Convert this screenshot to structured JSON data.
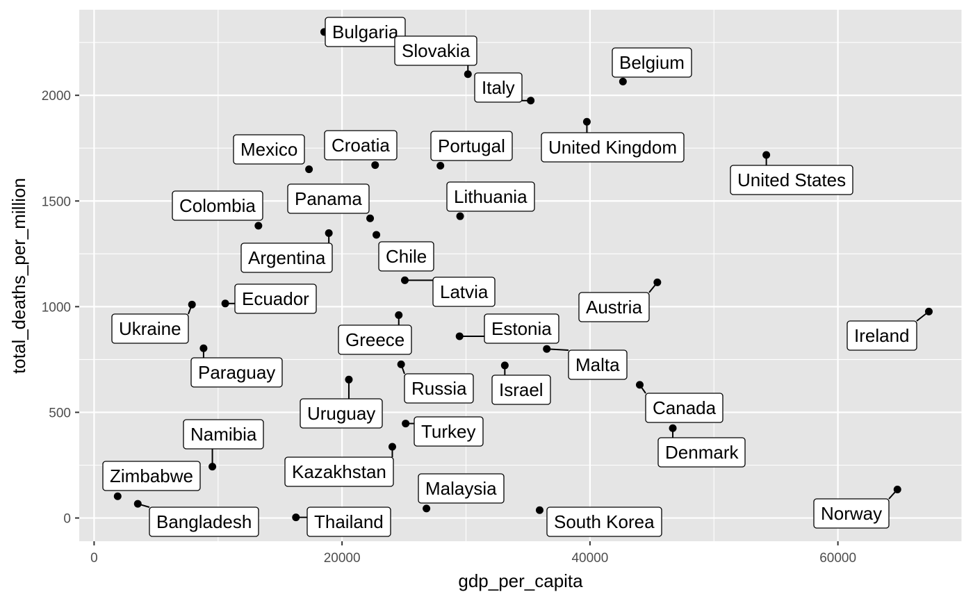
{
  "chart_data": {
    "type": "scatter",
    "xlabel": "gdp_per_capita",
    "ylabel": "total_deaths_per_million",
    "xlim": [
      -1200,
      70000
    ],
    "ylim": [
      -110,
      2405
    ],
    "x_ticks": [
      0,
      20000,
      40000,
      60000
    ],
    "y_ticks": [
      0,
      500,
      1000,
      1500,
      2000
    ],
    "grid": true,
    "background": "#e5e5e5",
    "grid_color": "#ffffff",
    "point_color": "#000000",
    "points": [
      {
        "label": "Bulgaria",
        "x": 18560,
        "y": 2300
      },
      {
        "label": "Slovakia",
        "x": 30155,
        "y": 2100
      },
      {
        "label": "Italy",
        "x": 35220,
        "y": 1975
      },
      {
        "label": "Belgium",
        "x": 42660,
        "y": 2065
      },
      {
        "label": "United Kingdom",
        "x": 39750,
        "y": 1875
      },
      {
        "label": "United States",
        "x": 54225,
        "y": 1718
      },
      {
        "label": "Mexico",
        "x": 17335,
        "y": 1650
      },
      {
        "label": "Croatia",
        "x": 22670,
        "y": 1670
      },
      {
        "label": "Portugal",
        "x": 27935,
        "y": 1667
      },
      {
        "label": "Panama",
        "x": 22265,
        "y": 1418
      },
      {
        "label": "Lithuania",
        "x": 29525,
        "y": 1428
      },
      {
        "label": "Colombia",
        "x": 13255,
        "y": 1383
      },
      {
        "label": "Argentina",
        "x": 18935,
        "y": 1348
      },
      {
        "label": "Chile",
        "x": 22770,
        "y": 1340
      },
      {
        "label": "Latvia",
        "x": 25065,
        "y": 1125
      },
      {
        "label": "Ecuador",
        "x": 10580,
        "y": 1015
      },
      {
        "label": "Ukraine",
        "x": 7895,
        "y": 1010
      },
      {
        "label": "Austria",
        "x": 45435,
        "y": 1115
      },
      {
        "label": "Ireland",
        "x": 67335,
        "y": 977
      },
      {
        "label": "Greece",
        "x": 24575,
        "y": 960
      },
      {
        "label": "Estonia",
        "x": 29480,
        "y": 860
      },
      {
        "label": "Paraguay",
        "x": 8830,
        "y": 803
      },
      {
        "label": "Malta",
        "x": 36515,
        "y": 800
      },
      {
        "label": "Russia",
        "x": 24765,
        "y": 727
      },
      {
        "label": "Israel",
        "x": 33130,
        "y": 722
      },
      {
        "label": "Uruguay",
        "x": 20550,
        "y": 655
      },
      {
        "label": "Canada",
        "x": 44015,
        "y": 630
      },
      {
        "label": "Turkey",
        "x": 25130,
        "y": 447
      },
      {
        "label": "Denmark",
        "x": 46680,
        "y": 425
      },
      {
        "label": "Kazakhstan",
        "x": 24055,
        "y": 337
      },
      {
        "label": "Namibia",
        "x": 9540,
        "y": 243
      },
      {
        "label": "Norway",
        "x": 64800,
        "y": 135
      },
      {
        "label": "Zimbabwe",
        "x": 1900,
        "y": 103
      },
      {
        "label": "Bangladesh",
        "x": 3525,
        "y": 67
      },
      {
        "label": "Malaysia",
        "x": 26810,
        "y": 45
      },
      {
        "label": "South Korea",
        "x": 35940,
        "y": 37
      },
      {
        "label": "Thailand",
        "x": 16280,
        "y": 3
      }
    ]
  }
}
